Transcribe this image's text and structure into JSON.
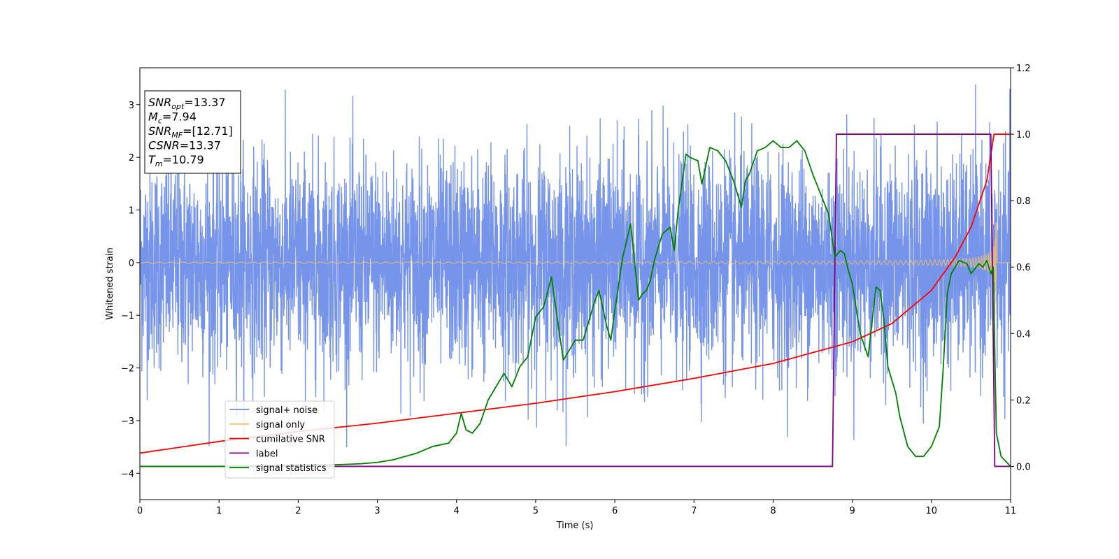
{
  "chart_data": {
    "type": "line",
    "xlabel": "Time (s)",
    "ylabel": "Whitened strain",
    "xlim": [
      0,
      11
    ],
    "ylim": [
      -4.5,
      3.7
    ],
    "y2lim": [
      -0.1,
      1.2
    ],
    "xticks": [
      "0",
      "1",
      "2",
      "3",
      "4",
      "5",
      "6",
      "7",
      "8",
      "9",
      "10",
      "11"
    ],
    "yticks": [
      "−4",
      "−3",
      "−2",
      "−1",
      "0",
      "1",
      "2",
      "3"
    ],
    "y2ticks": [
      "0.0",
      "0.2",
      "0.4",
      "0.6",
      "0.8",
      "1.0",
      "1.2"
    ],
    "info_box": [
      {
        "var": "SNR",
        "sub": "opt",
        "value": "=13.37"
      },
      {
        "var": "M",
        "sub": "c",
        "value": "=7.94"
      },
      {
        "var": "SNR",
        "sub": "MF",
        "value": "=[12.71]"
      },
      {
        "var": "CSNR",
        "sub": "",
        "value": "=13.37"
      },
      {
        "var": "T",
        "sub": "m",
        "value": "=10.79"
      }
    ],
    "legend_position": "lower-left",
    "series": [
      {
        "name": "signal+ noise",
        "axis": "left",
        "color": "#6f8ee8",
        "kind": "noise",
        "description_values": {
          "sigma": 1.0,
          "min": -3.5,
          "max": 3.3
        }
      },
      {
        "name": "signal only",
        "axis": "left",
        "color": "#f5c06b",
        "kind": "chirp",
        "merger_time": 10.79,
        "end_time": 10.83
      },
      {
        "name": "cumilative SNR",
        "axis": "right",
        "color": "#ff0000",
        "x": [
          0,
          1,
          2,
          3,
          4,
          5,
          6,
          7,
          8,
          9,
          9.5,
          10,
          10.3,
          10.5,
          10.7,
          10.79,
          11
        ],
        "y": [
          0.04,
          0.075,
          0.105,
          0.13,
          0.16,
          0.19,
          0.225,
          0.265,
          0.31,
          0.375,
          0.43,
          0.53,
          0.63,
          0.72,
          0.86,
          1.0,
          1.0
        ]
      },
      {
        "name": "label",
        "axis": "right",
        "color": "#800080",
        "x": [
          0,
          8.75,
          8.8,
          10.75,
          10.8,
          11
        ],
        "y": [
          0.0,
          0.0,
          1.0,
          1.0,
          0.0,
          0.0
        ]
      },
      {
        "name": "signal statistics",
        "axis": "right",
        "color": "#008000",
        "x": [
          0,
          0.5,
          1,
          1.5,
          2,
          2.5,
          2.8,
          3,
          3.2,
          3.5,
          3.7,
          3.8,
          3.9,
          4.0,
          4.06,
          4.12,
          4.2,
          4.3,
          4.4,
          4.6,
          4.7,
          4.75,
          4.8,
          4.9,
          5.0,
          5.1,
          5.2,
          5.3,
          5.35,
          5.4,
          5.5,
          5.6,
          5.7,
          5.75,
          5.8,
          5.9,
          5.95,
          6.0,
          6.1,
          6.2,
          6.3,
          6.35,
          6.4,
          6.45,
          6.5,
          6.6,
          6.7,
          6.75,
          6.8,
          6.9,
          6.95,
          7.05,
          7.1,
          7.2,
          7.3,
          7.4,
          7.5,
          7.6,
          7.65,
          7.7,
          7.8,
          7.9,
          8.0,
          8.1,
          8.2,
          8.3,
          8.4,
          8.5,
          8.6,
          8.7,
          8.78,
          8.85,
          8.9,
          8.95,
          9.0,
          9.1,
          9.2,
          9.3,
          9.35,
          9.4,
          9.45,
          9.55,
          9.6,
          9.7,
          9.8,
          9.9,
          10.0,
          10.05,
          10.1,
          10.15,
          10.2,
          10.25,
          10.35,
          10.45,
          10.5,
          10.6,
          10.65,
          10.7,
          10.75,
          10.78,
          10.82,
          10.88,
          11.0
        ],
        "y": [
          0.0,
          0.0,
          0.0,
          0.002,
          0.005,
          0.005,
          0.008,
          0.012,
          0.02,
          0.04,
          0.06,
          0.065,
          0.07,
          0.1,
          0.16,
          0.11,
          0.1,
          0.13,
          0.2,
          0.28,
          0.24,
          0.27,
          0.3,
          0.33,
          0.45,
          0.48,
          0.57,
          0.4,
          0.32,
          0.34,
          0.38,
          0.38,
          0.46,
          0.5,
          0.53,
          0.42,
          0.38,
          0.47,
          0.63,
          0.73,
          0.5,
          0.52,
          0.53,
          0.56,
          0.62,
          0.7,
          0.72,
          0.65,
          0.77,
          0.94,
          0.93,
          0.92,
          0.85,
          0.96,
          0.95,
          0.92,
          0.86,
          0.78,
          0.86,
          0.88,
          0.95,
          0.96,
          0.98,
          0.96,
          0.96,
          0.98,
          0.95,
          0.88,
          0.82,
          0.76,
          0.63,
          0.65,
          0.64,
          0.59,
          0.55,
          0.4,
          0.33,
          0.54,
          0.53,
          0.44,
          0.3,
          0.22,
          0.15,
          0.06,
          0.03,
          0.03,
          0.06,
          0.09,
          0.12,
          0.3,
          0.52,
          0.58,
          0.62,
          0.61,
          0.58,
          0.61,
          0.6,
          0.62,
          0.58,
          0.6,
          0.1,
          0.03,
          0.0
        ]
      }
    ]
  }
}
